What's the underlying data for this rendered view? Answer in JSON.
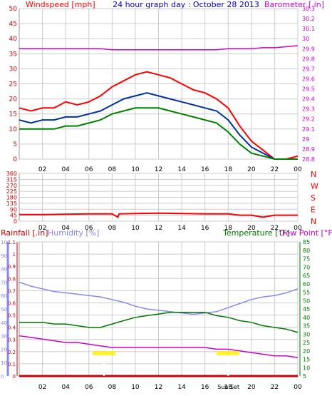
{
  "header": {
    "windspeed_label": "Windspeed [mph]",
    "title": "24 hour graph day : October 28 2013",
    "barometer_label": "Barometer [.in]"
  },
  "rainfall_label": "Rainfall [.in]",
  "humidity_label": "Humidity [%]",
  "temperature_label": "Temperature [°F]",
  "dewpoint_label": "Dew Point [°F]",
  "sun_label": "Sun Set",
  "colors": {
    "windspeed": "#ff0000",
    "wind_avg": "#003399",
    "wind_low": "#008000",
    "title": "#0000cc",
    "barometer": "#cc00cc",
    "direction": "#ff0000",
    "rainfall": "#cc0000",
    "humidity": "#8888ee",
    "temperature": "#007700",
    "dewpoint": "#cc00cc",
    "sun": "#ffee00",
    "grid": "#cccccc"
  },
  "chart_data": [
    {
      "type": "line",
      "name": "wind_and_barometer",
      "x_ticks": [
        "02",
        "04",
        "06",
        "08",
        "10",
        "12",
        "14",
        "16",
        "18",
        "20",
        "22",
        "00"
      ],
      "xlim": [
        0,
        24
      ],
      "y_left": {
        "label": "Windspeed [mph]",
        "ticks": [
          "0",
          "5",
          "10",
          "15",
          "20",
          "25",
          "30",
          "35",
          "40",
          "45",
          "50"
        ],
        "lim": [
          0,
          50
        ]
      },
      "y_right": {
        "label": "Barometer [.in]",
        "ticks": [
          "28.8",
          "28.9",
          "29",
          "29.1",
          "29.2",
          "29.3",
          "29.4",
          "29.5",
          "29.6",
          "29.7",
          "29.8",
          "29.9",
          "30",
          "30.1",
          "30.2",
          "30.3"
        ],
        "lim": [
          28.8,
          30.3
        ]
      },
      "x": [
        0,
        1,
        2,
        3,
        4,
        5,
        6,
        7,
        8,
        9,
        10,
        11,
        12,
        13,
        14,
        15,
        16,
        17,
        18,
        19,
        20,
        21,
        22,
        23,
        24
      ],
      "series": [
        {
          "axis": "left",
          "values": [
            17,
            16,
            17,
            17,
            19,
            18,
            19,
            21,
            24,
            26,
            28,
            29,
            28,
            27,
            25,
            23,
            22,
            20,
            17,
            11,
            6,
            3,
            0,
            0,
            1
          ]
        },
        {
          "axis": "left",
          "values": [
            13,
            12,
            13,
            13,
            14,
            14,
            15,
            16,
            18,
            20,
            21,
            22,
            21,
            20,
            19,
            18,
            17,
            16,
            13,
            8,
            4,
            2,
            0,
            0,
            0
          ]
        },
        {
          "axis": "left",
          "values": [
            10,
            10,
            10,
            10,
            11,
            11,
            12,
            13,
            15,
            16,
            17,
            17,
            17,
            16,
            15,
            14,
            13,
            12,
            9,
            5,
            2,
            1,
            0,
            0,
            0
          ]
        },
        {
          "axis": "right",
          "values": [
            29.9,
            29.9,
            29.9,
            29.9,
            29.9,
            29.9,
            29.9,
            29.9,
            29.89,
            29.89,
            29.89,
            29.89,
            29.89,
            29.89,
            29.89,
            29.89,
            29.89,
            29.89,
            29.9,
            29.9,
            29.9,
            29.91,
            29.91,
            29.92,
            29.93
          ]
        }
      ]
    },
    {
      "type": "line",
      "name": "wind_direction",
      "x_ticks": [
        "02",
        "04",
        "06",
        "08",
        "10",
        "12",
        "14",
        "16",
        "18",
        "20",
        "22",
        "00"
      ],
      "xlim": [
        0,
        24
      ],
      "y_left": {
        "ticks": [
          "0",
          "45",
          "90",
          "135",
          "180",
          "225",
          "270",
          "315",
          "360"
        ],
        "lim": [
          0,
          360
        ]
      },
      "y_right_labels": [
        "N",
        "W",
        "S",
        "E",
        "N"
      ],
      "x": [
        0,
        2,
        4,
        6,
        8,
        8.5,
        8.6,
        10,
        12,
        14,
        16,
        18,
        19,
        20,
        21,
        22,
        23,
        24
      ],
      "values": [
        50,
        50,
        52,
        55,
        55,
        30,
        55,
        58,
        60,
        58,
        55,
        55,
        45,
        45,
        30,
        45,
        45,
        45
      ]
    },
    {
      "type": "line",
      "name": "rain_humidity_temperature",
      "x_ticks": [
        "02",
        "04",
        "06",
        "08",
        "10",
        "12",
        "14",
        "16",
        "18",
        "20",
        "22",
        "00"
      ],
      "xlim": [
        0,
        24
      ],
      "y_humidity": {
        "label": "Humidity [%]",
        "ticks": [
          "0",
          "10",
          "20",
          "30",
          "40",
          "50",
          "60",
          "70",
          "80",
          "90",
          "100"
        ],
        "lim": [
          0,
          100
        ]
      },
      "y_rain": {
        "label": "Rainfall [.in]",
        "ticks": [
          "0",
          "0.1",
          "0.2",
          "0.3",
          "0.4",
          "0.5",
          "0.6",
          "0.7",
          "0.8",
          "0.9",
          "1",
          "1.1"
        ],
        "lim": [
          0,
          1.1
        ]
      },
      "y_right": {
        "label": "Temperature [°F]",
        "ticks": [
          "5",
          "10",
          "15",
          "20",
          "25",
          "30",
          "35",
          "40",
          "45",
          "50",
          "55",
          "60",
          "65",
          "70",
          "75",
          "80",
          "85"
        ],
        "lim": [
          5,
          85
        ]
      },
      "x": [
        0,
        1,
        2,
        3,
        4,
        5,
        6,
        7,
        8,
        9,
        10,
        11,
        12,
        13,
        14,
        15,
        16,
        17,
        18,
        19,
        20,
        21,
        22,
        23,
        24
      ],
      "series": [
        {
          "axis": "humidity",
          "values": [
            70,
            67,
            65,
            63,
            62,
            61,
            60,
            59,
            57,
            55,
            52,
            50,
            49,
            48,
            47,
            46,
            47,
            48,
            51,
            54,
            57,
            59,
            60,
            62,
            65
          ]
        },
        {
          "axis": "right",
          "values": [
            37,
            37,
            37,
            36,
            36,
            35,
            34,
            34,
            36,
            38,
            40,
            41,
            42,
            43,
            43,
            43,
            43,
            41,
            40,
            38,
            37,
            35,
            34,
            33,
            31
          ]
        },
        {
          "axis": "right",
          "values": [
            29,
            28,
            27,
            26,
            25,
            25,
            24,
            23,
            22,
            22,
            22,
            22,
            22,
            22,
            22,
            22,
            22,
            21,
            21,
            20,
            19,
            18,
            17,
            17,
            16
          ]
        },
        {
          "axis": "rain",
          "values": [
            0,
            0,
            0,
            0,
            0,
            0,
            0,
            0,
            0,
            0,
            0,
            0,
            0,
            0,
            0,
            0,
            0,
            0,
            0,
            0,
            0,
            0,
            0,
            0,
            0
          ]
        }
      ],
      "sunrise_x": 7.3,
      "sunset_x": 18.0
    }
  ]
}
